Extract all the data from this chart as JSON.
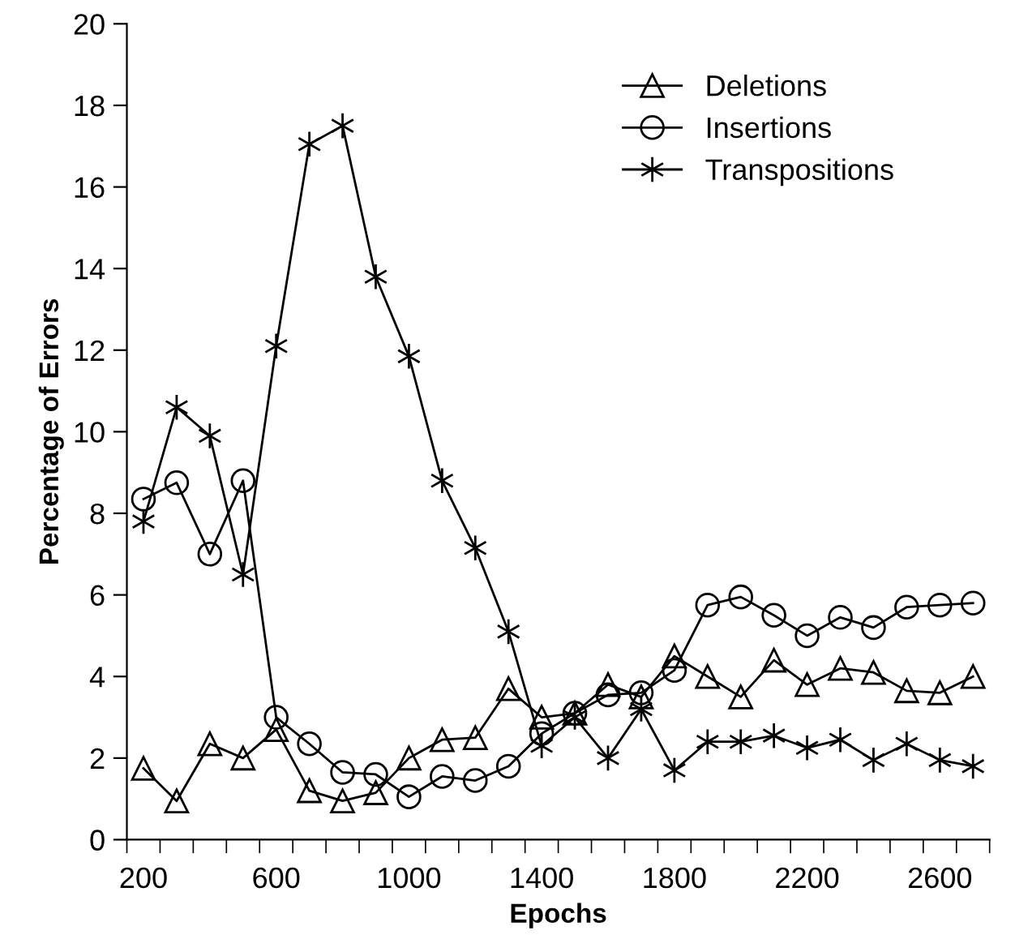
{
  "chart_data": {
    "type": "line",
    "xlabel": "Epochs",
    "ylabel": "Percentage of Errors",
    "categories": [
      "200",
      null,
      null,
      null,
      "600",
      null,
      null,
      null,
      "1000",
      null,
      null,
      null,
      "1400",
      null,
      null,
      null,
      "1800",
      null,
      null,
      null,
      "2200",
      null,
      null,
      null,
      "2600",
      null
    ],
    "series": [
      {
        "name": "Deletions",
        "color": "#000000",
        "marker": "triangle",
        "values": [
          1.75,
          0.95,
          2.35,
          2.0,
          2.7,
          1.2,
          0.95,
          1.15,
          2.0,
          2.45,
          2.5,
          3.7,
          3.0,
          3.1,
          3.8,
          3.5,
          4.5,
          4.0,
          3.5,
          4.4,
          3.8,
          4.2,
          4.1,
          3.65,
          3.6,
          4.0
        ]
      },
      {
        "name": "Insertions",
        "color": "#000000",
        "marker": "circle",
        "values": [
          8.35,
          8.75,
          7.0,
          8.8,
          3.0,
          2.35,
          1.65,
          1.6,
          1.05,
          1.55,
          1.45,
          1.8,
          2.6,
          3.1,
          3.55,
          3.6,
          4.15,
          5.75,
          5.95,
          5.5,
          5.0,
          5.45,
          5.2,
          5.7,
          5.75,
          5.8
        ]
      },
      {
        "name": "Transpositions",
        "color": "#000000",
        "marker": "cross",
        "values": [
          7.8,
          10.6,
          9.9,
          6.5,
          12.1,
          17.05,
          17.5,
          13.8,
          11.85,
          8.8,
          7.15,
          5.1,
          2.3,
          3.0,
          2.0,
          3.2,
          1.7,
          2.4,
          2.4,
          2.55,
          2.25,
          2.45,
          1.95,
          2.35,
          1.95,
          1.8
        ]
      }
    ],
    "ylim": [
      0,
      20
    ],
    "yticks": [
      0,
      2,
      4,
      6,
      8,
      10,
      12,
      14,
      16,
      18,
      20
    ],
    "grid": false,
    "legend": "top right",
    "line_style": "solid"
  }
}
